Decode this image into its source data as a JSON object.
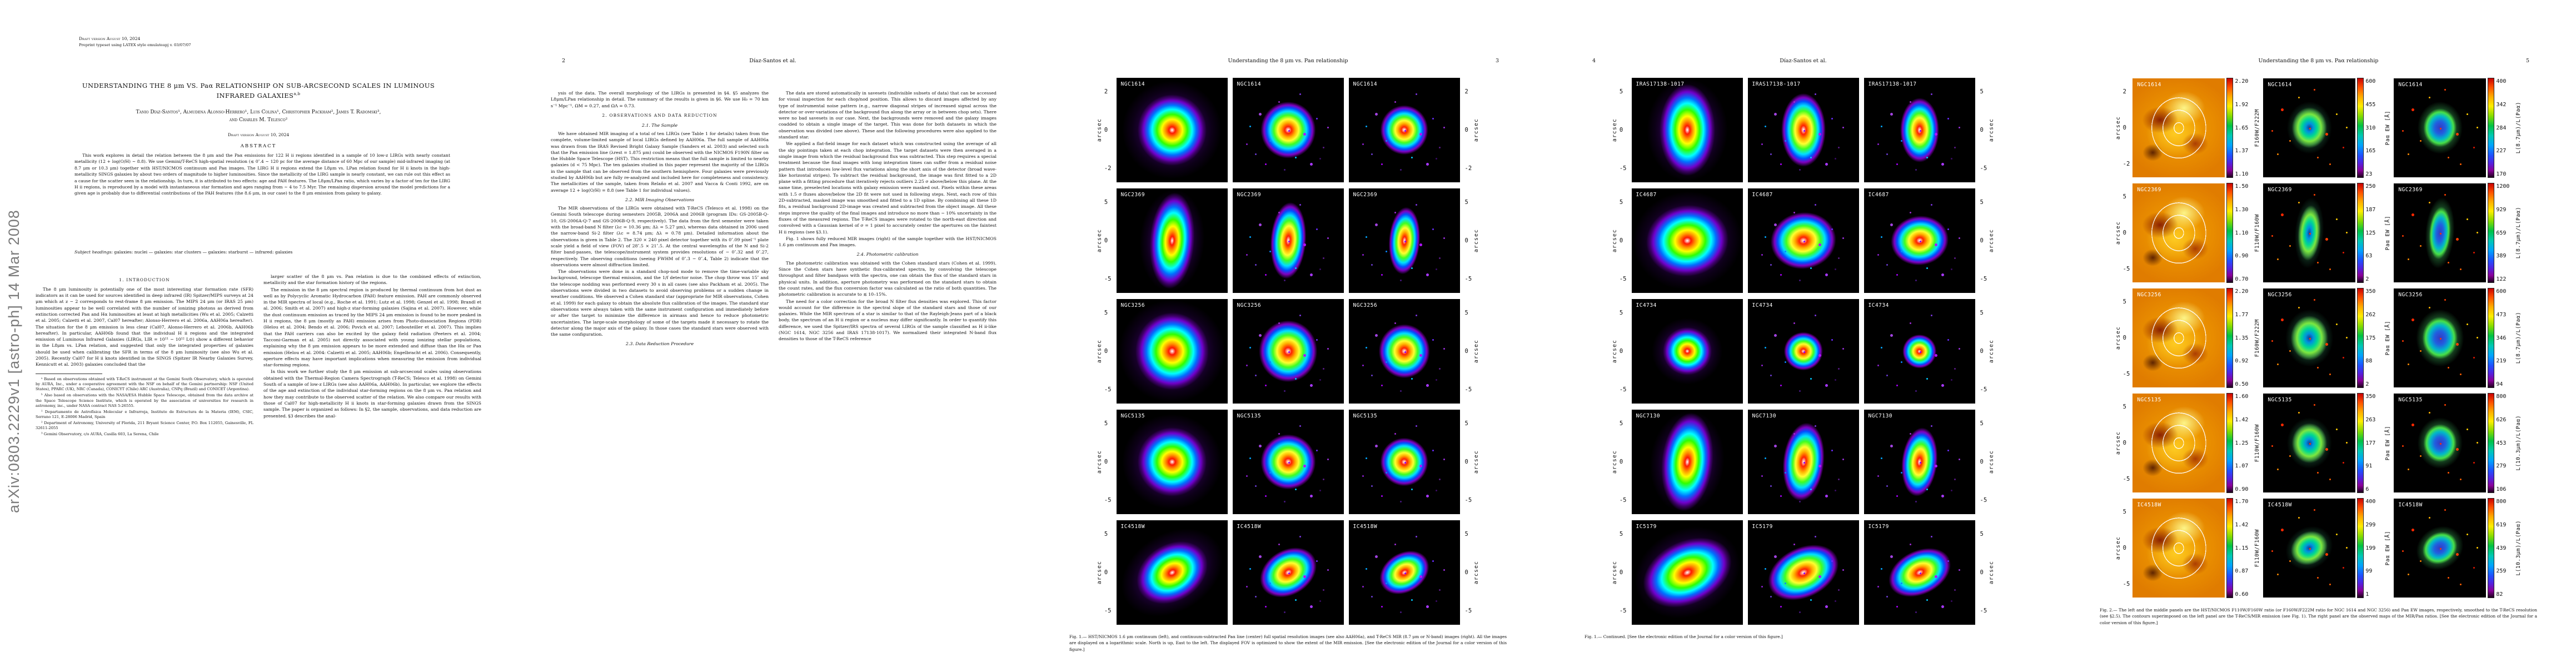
{
  "arxiv_sidebar": "arXiv:0803.2229v1  [astro-ph]  14 Mar 2008",
  "page1": {
    "header_line1": "Draft version August 10, 2024",
    "header_line2": "Preprint typeset using LATEX style emulateapj v. 03/07/07",
    "title_main": "UNDERSTANDING THE 8 μm VS. Paα RELATIONSHIP ON SUB-ARCSECOND SCALES IN LUMINOUS INFRARED GALAXIES",
    "title_sup": "a,b",
    "authors_line1": "Tanio Díaz-Santos¹, Almudena Alonso-Herrero¹, Luis Colina¹, Christopher Packham², James T. Radomski³,",
    "authors_line2": "and Charles M. Telesco²",
    "dateline": "Draft version August 10, 2024",
    "abstract_heading": "ABSTRACT",
    "abstract": "This work explores in detail the relation between the 8 μm and the Paα emissions for 122 H ii regions identified in a sample of 10 low-z LIRGs with nearly constant metallicity (12 + log(O/H) ∼ 8.8). We use Gemini/T-ReCS high-spatial resolution (≲ 0″.4 ∼ 120 pc for the average distance of 60 Mpc of our sample) mid-infrared imaging (at 8.7 μm or 10.3 μm) together with HST/NICMOS continuum and Paα images. The LIRG H ii regions extend the L8μm vs. LPaα relation found for H ii knots in the high-metallicity SINGS galaxies by about two orders of magnitude to higher luminosities. Since the metallicity of the LIRG sample is nearly constant, we can rule out this effect as a cause for the scatter seen in the relationship. In turn, it is attributed to two effects: age and PAH features. The L8μm/LPaα ratio, which varies by a factor of ten for the LIRG H ii regions, is reproduced by a model with instantaneous star formation and ages ranging from ∼ 4 to 7.5 Myr. The remaining dispersion around the model predictions for a given age is probably due to differential contributions of the PAH features (the 8.6 μm, in our case) to the 8 μm emission from galaxy to galaxy.",
    "subject_label": "Subject headings:",
    "subject_text": "galaxies: nuclei — galaxies: star clusters — galaxies: starburst — infrared: galaxies",
    "left_column": [
      {
        "t": "h1",
        "s": "1. INTRODUCTION"
      },
      {
        "t": "p",
        "s": "The 8 μm luminosity is potentially one of the most interesting star formation rate (SFR) indicators as it can be used for sources identified in deep infrared (IR) Spitzer/MIPS surveys at 24 μm which at z ∼ 2 corresponds to rest-frame 8 μm emission. The MIPS 24 μm (or IRAS 25 μm) luminosities appear to be well correlated with the number of ionizing photons as derived from extinction corrected Paα and Hα luminosities at least at high metallicities (Wu et al. 2005; Calzetti et al. 2005; Calzetti et al. 2007, Cal07 hereafter; Alonso-Herrero et al. 2006a, AAH06a hereafter). The situation for the 8 μm emission is less clear (Cal07, Alonso-Herrero et al. 2006b, AAH06b hereafter). In particular, AAH06b found that the individual H ii regions and the integrated emission of Luminous Infrared Galaxies (LIRGs, LIR = 10¹¹ − 10¹² L⊙) show a different behavior in the L8μm vs. LPaα relation, and suggested that only the integrated properties of galaxies should be used when calibrating the SFR in terms of the 8 μm luminosity (see also Wu et al. 2005). Recently Cal07 for H ii knots identified in the SINGS (Spitzer IR Nearby Galaxies Survey, Kennicutt et al. 2003) galaxies concluded that the"
      }
    ],
    "footnotes": [
      "ᵃ Based on observations obtained with T-ReCS instrument at the Gemini South Observatory, which is operated by AURA, Inc., under a cooperative agreement with the NSF on behalf of the Gemini partnership: NSF (United States), PPARC (UK), NRC (Canada), CONICYT (Chile) ARC (Australia), CNPq (Brazil) and CONICET (Argentina).",
      "ᵇ Also based on observations with the NASA/ESA Hubble Space Telescope, obtained from the data archive at the Space Telescope Science Institute, which is operated by the association of universities for research in astronomy, inc., under NASA contract NAS 5-26555.",
      "¹ Departamento de Astrofísica Molecular e Infrarroja, Instituto de Estructura de la Materia (IEM), CSIC, Serrano 121, E-28006 Madrid, Spain",
      "² Department of Astronomy, University of Florida, 211 Bryant Science Center, P.O. Box 112055, Gainesville, FL 32611-2055",
      "³ Gemini Observatory, c/o AURA, Casilla 603, La Serena, Chile"
    ],
    "right_column": [
      {
        "t": "p",
        "s": "larger scatter of the 8 μm vs. Paα relation is due to the combined effects of extinction, metallicity and the star formation history of the regions."
      },
      {
        "t": "p",
        "s": "The emission in the 8 μm spectral region is produced by thermal continuum from hot dust as well as by Polycyclic Aromatic Hydrocarbon (PAH) feature emission. PAH are commonly observed in the MIR spectra of local (e.g., Roche et al. 1991; Lutz et al. 1998; Genzel et al. 1998; Brandl et al. 2006; Smith et al. 2007) and high-z star-forming galaxies (Sajina et al. 2007). However, while the dust continuum emission as traced by the MIPS 24 μm emission is found to be more peaked in H ii regions, the 8 μm (mostly as PAH) emission arises from Photo-dissociation Regions (PDR) (Helou et al. 2004; Bendo et al. 2006; Povich et al. 2007; Lebouteiller et al. 2007). This implies that the PAH carriers can also be excited by the galaxy field radiation (Peeters et al. 2004; Tacconi-Garman et al. 2005) not directly associated with young ionizing stellar populations, explaining why the 8 μm emission appears to be more extended and diffuse than the Hα or Paα emission (Helou et al. 2004: Calzetti et al. 2005; AAH06b; Engelbracht et al. 2006). Consequently, aperture effects may have important implications when measuring the emission from individual star-forming regions."
      },
      {
        "t": "p",
        "s": "In this work we further study the 8 μm emission at sub-arcsecond scales using observations obtained with the Thermal-Region Camera Spectrograph (T-ReCS; Telesco et al. 1998) on Gemini South of a sample of low-z LIRGs (see also AAH06a, AAH06b). In particular, we explore the effects of the age and extinction of the individual star-forming regions on the 8 μm vs. Paα relation and how they may contribute to the observed scatter of the relation. We also compare our results with those of Cal07 for high-metallicity H ii knots in star-forming galaxies drawn from the SINGS sample. The paper is organized as follows: In §2, the sample, observations, and data reduction are presented. §3 describes the anal-"
      }
    ]
  },
  "page2": {
    "page_number": "2",
    "running_head": "Díaz-Santos et al.",
    "left_column": [
      {
        "t": "p",
        "s": "ysis of the data. The overall morphology of the LIRGs is presented in §4. §5 analyzes the L8μm/LPaα relationship in detail. The summary of the results is given in §6. We use H₀ = 70 km s⁻¹ Mpc⁻¹, ΩM = 0.27, and ΩΛ = 0.73."
      },
      {
        "t": "h1",
        "s": "2. OBSERVATIONS AND DATA REDUCTION"
      },
      {
        "t": "h2",
        "s": "2.1. The Sample"
      },
      {
        "t": "p",
        "s": "We have obtained MIR imaging of a total of ten LIRGs (see Table 1 for details) taken from the complete, volume-limited sample of local LIRGs defined by AAH06a. The full sample of AAH06a was drawn from the IRAS Revised Bright Galaxy Sample (Sanders et al. 2003) and selected such that the Paα emission line (λrest = 1.875 μm) could be observed with the NICMOS F190N filter on the Hubble Space Telescope (HST). This restriction means that the full sample is limited to nearby galaxies (d < 75 Mpc). The ten galaxies studied in this paper represent the majority of the LIRGs in the sample that can be observed from the southern hemisphere. Four galaxies were previously studied by AAH06b but are fully re-analyzed and included here for completeness and consistency. The metallicities of the sample, taken from Relaño et al. 2007 and Vacca & Conti 1992, are on average 12 + log(O/H) = 8.8 (see Table 1 for individual values)."
      },
      {
        "t": "h2",
        "s": "2.2. MIR Imaging Observations"
      },
      {
        "t": "p",
        "s": "The MIR observations of the LIRGs were obtained with T-ReCS (Telesco et al. 1998) on the Gemini South telescope during semesters 2005B, 2006A and 2006B (program IDs: GS-2005B-Q-10, GS-2006A-Q-7 and GS-2006B-Q-9, respectively). The data from the first semester were taken with the broad-band N filter (λc = 10.36 μm; Δλ = 5.27 μm), whereas data obtained in 2006 used the narrow-band Si-2 filter (λc = 8.74 μm; Δλ = 0.78 μm). Detailed information about the observations is given in Table 2. The 320 × 240 pixel detector together with its 0″.09 pixel⁻¹ plate scale yield a field of view (FOV) of 28″.5 × 21″.5. At the central wavelengths of the N and Si-2 filter band-passes, the telescope/instrument system provides resolutions of ∼ 0″.32 and 0″.27, respectively. The observing conditions (seeing FWHM of 0″.3 − 0″.4, Table 2) indicate that the observations were almost diffraction limited."
      },
      {
        "t": "p",
        "s": "The observations were done in a standard chop-nod mode to remove the time-variable sky background, telescope thermal emission, and the 1/f detector noise. The chop throw was 15″ and the telescope nodding was performed every 30 s in all cases (see also Packham et al. 2005). The observations were divided in two datasets to avoid observing problems or a sudden change in weather conditions. We observed a Cohen standard star (appropriate for MIR observations, Cohen et al. 1999) for each galaxy to obtain the absolute flux calibration of the images. The standard star observations were always taken with the same instrument configuration and immediately before or after the target to minimize the difference in airmass and hence to reduce photometric uncertainties. The large-scale morphology of some of the targets made it necessary to rotate the detector along the major axis of the galaxy. In those cases the standard stars were observed with the same configuration."
      },
      {
        "t": "h2",
        "s": "2.3. Data Reduction Procedure"
      }
    ],
    "right_column": [
      {
        "t": "p",
        "s": "The data are stored automatically in savesets (indivisible subsets of data) that can be accessed for visual inspection for each chop/nod position. This allows to discard images affected by any type of instrumental noise pattern (e.g., narrow diagonal stripes of increased signal across the detector or over-variations of the background flux along the array or in between chop sets). There were no bad savesets in our case. Next, the backgrounds were removed and the galaxy images coadded to obtain a single image of the target. This was done for both datasets in which the observation was divided (see above). These and the following procedures were also applied to the standard star."
      },
      {
        "t": "p",
        "s": "We applied a flat-field image for each dataset which was constructed using the average of all the sky pointings taken at each chop integration. The target datasets were then averaged in a single image from which the residual background flux was subtracted. This step requires a special treatment because the final images with long integration times can suffer from a residual noise pattern that introduces low-level flux variations along the short axis of the detector (broad wave-like horizontal stripes). To subtract the residual background, the image was first fitted to a 2D plane with a fitting procedure that iteratively rejects outliers 2.25 σ above/below this plane. At the same time, preselected locations with galaxy emission were masked out. Pixels within these areas with 1.5 σ fluxes above/below the 2D fit were not used in following steps. Next, each row of this 2D-subtracted, masked image was smoothed and fitted to a 1D spline. By combining all these 1D fits, a residual background 2D-image was created and subtracted from the object image. All these steps improve the quality of the final images and introduce no more than ∼ 10% uncertainty in the fluxes of the measured regions. The T-ReCS images were rotated to the north-east direction and convolved with a Gaussian kernel of σ = 1 pixel to accurately center the apertures on the faintest H ii regions (see §3.1)."
      },
      {
        "t": "p",
        "s": "Fig. 1 shows fully reduced MIR images (right) of the sample together with the HST/NICMOS 1.6 μm continuum and Paα images."
      },
      {
        "t": "h2",
        "s": "2.4. Photometric calibration"
      },
      {
        "t": "p",
        "s": "The photometric calibration was obtained with the Cohen standard stars (Cohen et al. 1999). Since the Cohen stars have synthetic flux-calibrated spectra, by convolving the telescope throughput and filter bandpass with the spectra, one can obtain the flux of the standard stars in physical units. In addition, aperture photometry was performed on the standard stars to obtain the count rates, and the flux conversion factor was calculated as the ratio of both quantities. The photometric calibration is accurate to ≲ 10–15%."
      },
      {
        "t": "p",
        "s": "The need for a color correction for the broad N filter flux densities was explored. This factor would account for the difference in the spectral slope of the standard stars and those of our galaxies. While the MIR spectrum of a star is similar to that of the Rayleigh-Jeans part of a black body, the spectrum of an H ii region or a nucleus may differ significantly. In order to quantify this difference, we used the Spitzer/IRS spectra of several LIRGs of the sample classified as H ii-like (NGC 1614, NGC 3256 and IRAS 17138-1017). We normalized their integrated N-band flux densities to those of the T-ReCS reference"
      }
    ]
  },
  "page3": {
    "page_number": "3",
    "running_head": "Understanding the 8 μm vs. Paα relationship",
    "axis_label": "arcsec",
    "caption": "Fig. 1.— HST/NICMOS 1.6 μm continuum (left), and continuum-subtracted Paα line (center) full spatial resolution images (see also AAH06a), and T-ReCS MIR (8.7 μm or N-band) images (right). All the images are displayed on a logarithmic scale. North is up, East to the left. The displayed FOV is optimized to show the extent of the MIR emission. [See the electronic edition of the Journal for a color version of this figure.]",
    "rows": [
      {
        "name": "NGC1614",
        "yticks": [
          "2",
          "0",
          "-2"
        ],
        "shape": "round"
      },
      {
        "name": "NGC2369",
        "yticks": [
          "5",
          "0",
          "-5"
        ],
        "shape": "tall"
      },
      {
        "name": "NGC3256",
        "yticks": [
          "5",
          "0",
          "-5"
        ],
        "shape": "spiral"
      },
      {
        "name": "NGC5135",
        "yticks": [
          "5",
          "0",
          "-5"
        ],
        "shape": "lump"
      },
      {
        "name": "IC4518W",
        "yticks": [
          "5",
          "0",
          "-5"
        ],
        "shape": "ovaldiag"
      }
    ]
  },
  "page4": {
    "page_number": "4",
    "running_head": "Díaz-Santos et al.",
    "axis_label": "arcsec",
    "caption": "Fig. 1.— Continued. [See the electronic edition of the Journal for a color version of this figure.]",
    "rows": [
      {
        "name": "IRAS17138-1017",
        "yticks": [
          "5",
          "0",
          "-5"
        ],
        "shape": "voval"
      },
      {
        "name": "IC4687",
        "yticks": [
          "5",
          "0",
          "-5"
        ],
        "shape": "wide"
      },
      {
        "name": "IC4734",
        "yticks": [
          "5",
          "0",
          "-5"
        ],
        "shape": "compact"
      },
      {
        "name": "NGC7130",
        "yticks": [
          "5",
          "0",
          "-5"
        ],
        "shape": "tallirr"
      },
      {
        "name": "IC5179",
        "yticks": [
          "5",
          "0",
          "-5"
        ],
        "shape": "disk"
      }
    ]
  },
  "page5": {
    "page_number": "5",
    "running_head": "Understanding the 8 μm vs. Paα relationship",
    "axis_label": "arcsec",
    "caption": "Fig. 2.— The left and the middle panels are the HST/NICMOS F110W/F160W ratio (or F160W/F222M ratio for NGC 1614 and NGC 3256) and Paα EW images, respectively, smoothed to the T-ReCS resolution (see §2.5). The contours superimposed on the left panel are the T-ReCS/MIR emission (see Fig. 1). The right panel are the observed maps of the MIR/Paα ratios. [See the electronic edition of the Journal for a color version of this figure.]",
    "rows": [
      {
        "name": "NGC1614",
        "yticks": [
          "2",
          "0",
          "-2"
        ],
        "shape": "round",
        "left_label": "F160W/F222M",
        "left_ticks": [
          "2.20",
          "1.92",
          "1.65",
          "1.37",
          "1.10"
        ],
        "mid_label": "Paα EW [Å]",
        "mid_ticks": [
          "600",
          "455",
          "310",
          "165",
          "23"
        ],
        "right_label": "L(8.7μm)/L(Paα)",
        "right_ticks": [
          "400",
          "342",
          "284",
          "227",
          "170"
        ]
      },
      {
        "name": "NGC2369",
        "yticks": [
          "5",
          "0",
          "-5"
        ],
        "shape": "tall",
        "left_label": "F110W/F160W",
        "left_ticks": [
          "1.50",
          "1.30",
          "1.10",
          "0.90",
          "0.70"
        ],
        "mid_label": "Paα EW [Å]",
        "mid_ticks": [
          "250",
          "187",
          "125",
          "63",
          "2"
        ],
        "right_label": "L(8.7μm)/L(Paα)",
        "right_ticks": [
          "1200",
          "929",
          "659",
          "389",
          "122"
        ]
      },
      {
        "name": "NGC3256",
        "yticks": [
          "5",
          "0",
          "-5"
        ],
        "shape": "spiral",
        "left_label": "F160W/F222M",
        "left_ticks": [
          "2.20",
          "1.77",
          "1.35",
          "0.92",
          "0.50"
        ],
        "mid_label": "Paα EW [Å]",
        "mid_ticks": [
          "350",
          "262",
          "175",
          "88",
          "2"
        ],
        "right_label": "L(8.7μm)/L(Paα)",
        "right_ticks": [
          "600",
          "473",
          "346",
          "219",
          "94"
        ]
      },
      {
        "name": "NGC5135",
        "yticks": [
          "5",
          "0",
          "-5"
        ],
        "shape": "lump",
        "left_label": "F110W/F160W",
        "left_ticks": [
          "1.60",
          "1.42",
          "1.25",
          "1.07",
          "0.90"
        ],
        "mid_label": "Paα EW [Å]",
        "mid_ticks": [
          "350",
          "263",
          "177",
          "91",
          "6"
        ],
        "right_label": "L(10.3μm)/L(Paα)",
        "right_ticks": [
          "800",
          "626",
          "453",
          "279",
          "106"
        ]
      },
      {
        "name": "IC4518W",
        "yticks": [
          "5",
          "0",
          "-5"
        ],
        "shape": "ovaldiag",
        "left_label": "F110W/F160W",
        "left_ticks": [
          "1.70",
          "1.42",
          "1.15",
          "0.87",
          "0.60"
        ],
        "mid_label": "Paα EW [Å]",
        "mid_ticks": [
          "400",
          "299",
          "199",
          "99",
          "1"
        ],
        "right_label": "L(10.3μm)/L(Paα)",
        "right_ticks": [
          "800",
          "619",
          "439",
          "259",
          "82"
        ]
      }
    ]
  }
}
